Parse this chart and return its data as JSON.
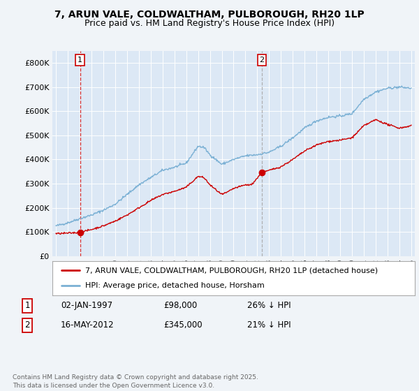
{
  "title": "7, ARUN VALE, COLDWALTHAM, PULBOROUGH, RH20 1LP",
  "subtitle": "Price paid vs. HM Land Registry's House Price Index (HPI)",
  "ylim": [
    0,
    850000
  ],
  "yticks": [
    0,
    100000,
    200000,
    300000,
    400000,
    500000,
    600000,
    700000,
    800000
  ],
  "ytick_labels": [
    "£0",
    "£100K",
    "£200K",
    "£300K",
    "£400K",
    "£500K",
    "£600K",
    "£700K",
    "£800K"
  ],
  "background_color": "#f0f4f8",
  "plot_bg_color": "#dce8f5",
  "red_color": "#cc0000",
  "blue_color": "#7ab0d4",
  "marker1_date": 1997.04,
  "marker1_price": 98000,
  "marker2_date": 2012.38,
  "marker2_price": 345000,
  "legend_line1": "7, ARUN VALE, COLDWALTHAM, PULBOROUGH, RH20 1LP (detached house)",
  "legend_line2": "HPI: Average price, detached house, Horsham",
  "footnote": "Contains HM Land Registry data © Crown copyright and database right 2025.\nThis data is licensed under the Open Government Licence v3.0.",
  "title_fontsize": 10,
  "subtitle_fontsize": 9
}
